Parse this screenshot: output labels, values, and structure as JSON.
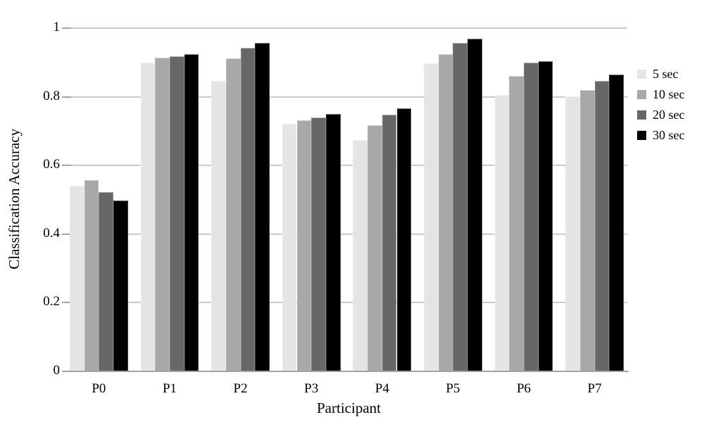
{
  "chart_data": {
    "type": "bar",
    "xlabel": "Participant",
    "ylabel": "Classification Accuracy",
    "categories": [
      "P0",
      "P1",
      "P2",
      "P3",
      "P4",
      "P5",
      "P6",
      "P7"
    ],
    "series": [
      {
        "name": "5 sec",
        "color": "#e5e5e5",
        "values": [
          0.54,
          0.898,
          0.845,
          0.72,
          0.672,
          0.896,
          0.803,
          0.8
        ]
      },
      {
        "name": "10 sec",
        "color": "#a8a8a8",
        "values": [
          0.555,
          0.912,
          0.91,
          0.73,
          0.715,
          0.922,
          0.858,
          0.818
        ]
      },
      {
        "name": "20 sec",
        "color": "#676767",
        "values": [
          0.52,
          0.916,
          0.94,
          0.738,
          0.747,
          0.955,
          0.897,
          0.845
        ]
      },
      {
        "name": "30 sec",
        "color": "#000000",
        "values": [
          0.495,
          0.922,
          0.955,
          0.748,
          0.764,
          0.968,
          0.901,
          0.862
        ]
      }
    ],
    "yticks": [
      0,
      0.2,
      0.4,
      0.6,
      0.8,
      1
    ],
    "ytick_labels": [
      "0",
      "0.2",
      "0.4",
      "0.6",
      "0.8",
      "1"
    ],
    "ylim": [
      0,
      1
    ],
    "grid": true,
    "legend_position": "right",
    "colors": {
      "gridline": "#cbcbcb",
      "axis": "#a3a3a3",
      "text": "#000000",
      "background": "#ffffff"
    }
  }
}
